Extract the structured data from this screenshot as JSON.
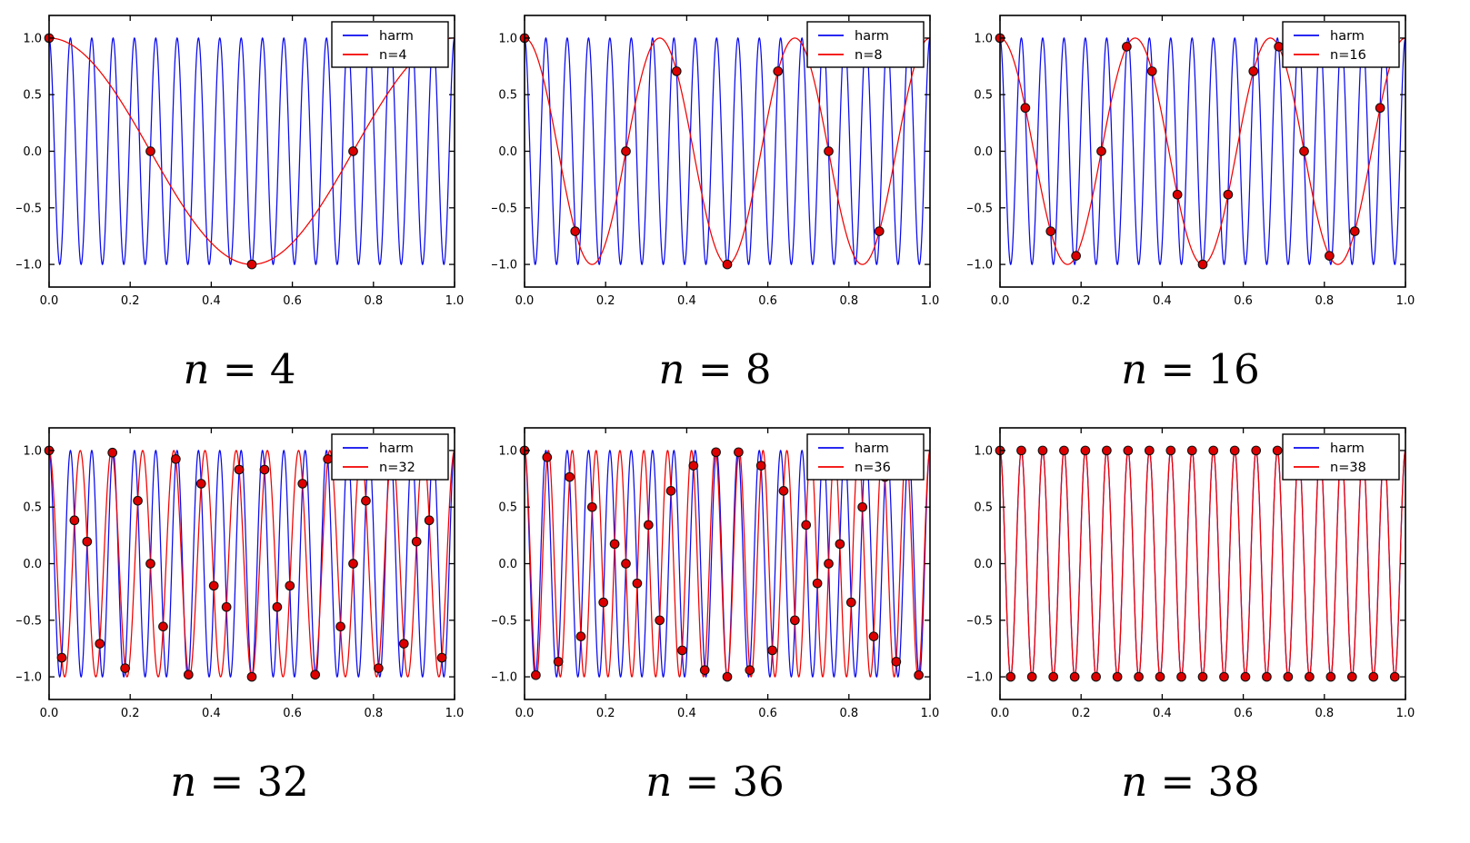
{
  "figure": {
    "background": "#ffffff",
    "description_harmonic_frequency": 19,
    "x_range": [
      0,
      1
    ],
    "legend_position": "upper right"
  },
  "colors": {
    "harmonic_line": "#0a0aee",
    "alias_line": "#f20000",
    "marker_fill": "#dd0000",
    "marker_edge": "#111111",
    "axis": "#000000",
    "tick_text": "#000000",
    "legend_bg": "#ffffff",
    "legend_border": "#000000"
  },
  "chart_data": [
    {
      "type": "line",
      "title": "n = 4",
      "sample_count": 4,
      "harmonic_frequency": 19,
      "alias_frequency": 1,
      "xlim": [
        0,
        1
      ],
      "ylim": [
        -1.2,
        1.2
      ],
      "grid": false,
      "xticks": [
        "0.0",
        "0.2",
        "0.4",
        "0.6",
        "0.8",
        "1.0"
      ],
      "yticks": [
        "1.0",
        "0.5",
        "0.0",
        "−0.5",
        "−1.0"
      ],
      "legend": [
        "harm",
        "n=4"
      ],
      "series": [
        {
          "name": "harm",
          "kind": "cosine",
          "frequency": 19,
          "color": "#0a0aee"
        },
        {
          "name": "n=4",
          "kind": "cosine",
          "frequency": 1,
          "color": "#f20000"
        }
      ],
      "samples": {
        "x": [
          0,
          0.25,
          0.5,
          0.75
        ],
        "y": [
          1.0,
          0.0,
          -1.0,
          0.0
        ]
      }
    },
    {
      "type": "line",
      "title": "n = 8",
      "sample_count": 8,
      "harmonic_frequency": 19,
      "alias_frequency": 3,
      "xlim": [
        0,
        1
      ],
      "ylim": [
        -1.2,
        1.2
      ],
      "grid": false,
      "xticks": [
        "0.0",
        "0.2",
        "0.4",
        "0.6",
        "0.8",
        "1.0"
      ],
      "yticks": [
        "1.0",
        "0.5",
        "0.0",
        "−0.5",
        "−1.0"
      ],
      "legend": [
        "harm",
        "n=8"
      ],
      "series": [
        {
          "name": "harm",
          "kind": "cosine",
          "frequency": 19,
          "color": "#0a0aee"
        },
        {
          "name": "n=8",
          "kind": "cosine",
          "frequency": 3,
          "color": "#f20000"
        }
      ],
      "samples": {
        "x": [
          0,
          0.125,
          0.25,
          0.375,
          0.5,
          0.625,
          0.75,
          0.875
        ],
        "y": [
          1.0,
          -0.707,
          0.0,
          0.707,
          -1.0,
          0.707,
          0.0,
          -0.707
        ]
      }
    },
    {
      "type": "line",
      "title": "n = 16",
      "sample_count": 16,
      "harmonic_frequency": 19,
      "alias_frequency": 3,
      "xlim": [
        0,
        1
      ],
      "ylim": [
        -1.2,
        1.2
      ],
      "grid": false,
      "xticks": [
        "0.0",
        "0.2",
        "0.4",
        "0.6",
        "0.8",
        "1.0"
      ],
      "yticks": [
        "1.0",
        "0.5",
        "0.0",
        "−0.5",
        "−1.0"
      ],
      "legend": [
        "harm",
        "n=16"
      ],
      "series": [
        {
          "name": "harm",
          "kind": "cosine",
          "frequency": 19,
          "color": "#0a0aee"
        },
        {
          "name": "n=16",
          "kind": "cosine",
          "frequency": 3,
          "color": "#f20000"
        }
      ],
      "samples": {
        "x": [
          0,
          0.0625,
          0.125,
          0.1875,
          0.25,
          0.3125,
          0.375,
          0.4375,
          0.5,
          0.5625,
          0.625,
          0.6875,
          0.75,
          0.8125,
          0.875,
          0.9375
        ],
        "y": [
          1.0,
          0.383,
          -0.707,
          -0.924,
          0.0,
          0.924,
          0.707,
          -0.383,
          -1.0,
          -0.383,
          0.707,
          0.924,
          0.0,
          -0.924,
          -0.707,
          0.383
        ]
      }
    },
    {
      "type": "line",
      "title": "n = 32",
      "sample_count": 32,
      "harmonic_frequency": 19,
      "alias_frequency": 13,
      "xlim": [
        0,
        1
      ],
      "ylim": [
        -1.2,
        1.2
      ],
      "grid": false,
      "xticks": [
        "0.0",
        "0.2",
        "0.4",
        "0.6",
        "0.8",
        "1.0"
      ],
      "yticks": [
        "1.0",
        "0.5",
        "0.0",
        "−0.5",
        "−1.0"
      ],
      "legend": [
        "harm",
        "n=32"
      ],
      "series": [
        {
          "name": "harm",
          "kind": "cosine",
          "frequency": 19,
          "color": "#0a0aee"
        },
        {
          "name": "n=32",
          "kind": "cosine",
          "frequency": 13,
          "color": "#f20000"
        }
      ],
      "samples": {
        "x": [
          0,
          0.03125,
          0.0625,
          0.09375,
          0.125,
          0.15625,
          0.1875,
          0.21875,
          0.25,
          0.28125,
          0.3125,
          0.34375,
          0.375,
          0.40625,
          0.4375,
          0.46875,
          0.5,
          0.53125,
          0.5625,
          0.59375,
          0.625,
          0.65625,
          0.6875,
          0.71875,
          0.75,
          0.78125,
          0.8125,
          0.84375,
          0.875,
          0.90625,
          0.9375,
          0.96875
        ],
        "y": [
          1.0,
          -0.831,
          0.383,
          0.195,
          -0.707,
          0.981,
          -0.924,
          0.556,
          0.0,
          -0.556,
          0.924,
          -0.981,
          0.707,
          -0.195,
          -0.383,
          0.831,
          -1.0,
          0.831,
          -0.383,
          -0.195,
          0.707,
          -0.981,
          0.924,
          -0.556,
          0.0,
          0.556,
          -0.924,
          0.981,
          -0.707,
          0.195,
          0.383,
          -0.831
        ]
      }
    },
    {
      "type": "line",
      "title": "n = 36",
      "sample_count": 36,
      "harmonic_frequency": 19,
      "alias_frequency": 17,
      "xlim": [
        0,
        1
      ],
      "ylim": [
        -1.2,
        1.2
      ],
      "grid": false,
      "xticks": [
        "0.0",
        "0.2",
        "0.4",
        "0.6",
        "0.8",
        "1.0"
      ],
      "yticks": [
        "1.0",
        "0.5",
        "0.0",
        "−0.5",
        "−1.0"
      ],
      "legend": [
        "harm",
        "n=36"
      ],
      "series": [
        {
          "name": "harm",
          "kind": "cosine",
          "frequency": 19,
          "color": "#0a0aee"
        },
        {
          "name": "n=36",
          "kind": "cosine",
          "frequency": 17,
          "color": "#f20000"
        }
      ],
      "samples": {
        "x": [
          0,
          0.0278,
          0.0556,
          0.0833,
          0.1111,
          0.1389,
          0.1667,
          0.1944,
          0.2222,
          0.25,
          0.2778,
          0.3056,
          0.3333,
          0.3611,
          0.3889,
          0.4167,
          0.4444,
          0.4722,
          0.5,
          0.5278,
          0.5556,
          0.5833,
          0.6111,
          0.6389,
          0.6667,
          0.6944,
          0.7222,
          0.75,
          0.7778,
          0.8056,
          0.8333,
          0.8611,
          0.8889,
          0.9167,
          0.9444,
          0.9722
        ],
        "y": [
          1.0,
          -0.985,
          0.94,
          -0.866,
          0.766,
          -0.643,
          0.5,
          -0.342,
          0.174,
          0.0,
          -0.174,
          0.342,
          -0.5,
          0.643,
          -0.766,
          0.866,
          -0.94,
          0.985,
          -1.0,
          0.985,
          -0.94,
          0.866,
          -0.766,
          0.643,
          -0.5,
          0.342,
          -0.174,
          0.0,
          0.174,
          -0.342,
          0.5,
          -0.643,
          0.766,
          -0.866,
          0.94,
          -0.985
        ]
      }
    },
    {
      "type": "line",
      "title": "n = 38",
      "sample_count": 38,
      "harmonic_frequency": 19,
      "alias_frequency": 19,
      "xlim": [
        0,
        1
      ],
      "ylim": [
        -1.2,
        1.2
      ],
      "grid": false,
      "xticks": [
        "0.0",
        "0.2",
        "0.4",
        "0.6",
        "0.8",
        "1.0"
      ],
      "yticks": [
        "1.0",
        "0.5",
        "0.0",
        "−0.5",
        "−1.0"
      ],
      "legend": [
        "harm",
        "n=38"
      ],
      "series": [
        {
          "name": "harm",
          "kind": "cosine",
          "frequency": 19,
          "color": "#0a0aee"
        },
        {
          "name": "n=38",
          "kind": "cosine",
          "frequency": 19,
          "color": "#f20000"
        }
      ],
      "samples": {
        "x": [
          0,
          0.0263,
          0.0526,
          0.0789,
          0.1053,
          0.1316,
          0.1579,
          0.1842,
          0.2105,
          0.2368,
          0.2632,
          0.2895,
          0.3158,
          0.3421,
          0.3684,
          0.3947,
          0.4211,
          0.4474,
          0.4737,
          0.5,
          0.5263,
          0.5526,
          0.5789,
          0.6053,
          0.6316,
          0.6579,
          0.6842,
          0.7105,
          0.7368,
          0.7632,
          0.7895,
          0.8158,
          0.8421,
          0.8684,
          0.8947,
          0.9211,
          0.9474,
          0.9737
        ],
        "y": [
          1,
          -1,
          1,
          -1,
          1,
          -1,
          1,
          -1,
          1,
          -1,
          1,
          -1,
          1,
          -1,
          1,
          -1,
          1,
          -1,
          1,
          -1,
          1,
          -1,
          1,
          -1,
          1,
          -1,
          1,
          -1,
          1,
          -1,
          1,
          -1,
          1,
          -1,
          1,
          -1,
          1,
          -1
        ]
      }
    }
  ]
}
